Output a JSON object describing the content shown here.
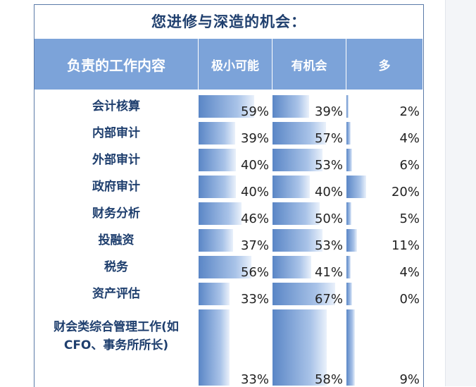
{
  "title": "您进修与深造的机会：",
  "headers": [
    "负责的工作内容",
    "极小可能",
    "有机会",
    "多"
  ],
  "rows": [
    {
      "label": "会计核算",
      "values": [
        "59%",
        "39%",
        "2%"
      ],
      "fractions": [
        0.59,
        0.39,
        0.02
      ]
    },
    {
      "label": "内部审计",
      "values": [
        "39%",
        "57%",
        "4%"
      ],
      "fractions": [
        0.39,
        0.57,
        0.04
      ]
    },
    {
      "label": "外部审计",
      "values": [
        "40%",
        "53%",
        "6%"
      ],
      "fractions": [
        0.4,
        0.53,
        0.06
      ]
    },
    {
      "label": "政府审计",
      "values": [
        "40%",
        "40%",
        "20%"
      ],
      "fractions": [
        0.4,
        0.4,
        0.2
      ]
    },
    {
      "label": "财务分析",
      "values": [
        "46%",
        "50%",
        "5%"
      ],
      "fractions": [
        0.46,
        0.5,
        0.05
      ]
    },
    {
      "label": "投融资",
      "values": [
        "37%",
        "53%",
        "11%"
      ],
      "fractions": [
        0.37,
        0.53,
        0.11
      ]
    },
    {
      "label": "税务",
      "values": [
        "56%",
        "41%",
        "4%"
      ],
      "fractions": [
        0.56,
        0.41,
        0.04
      ]
    },
    {
      "label": "资产评估",
      "values": [
        "33%",
        "67%",
        "0%"
      ],
      "fractions": [
        0.33,
        0.67,
        0.0
      ]
    },
    {
      "label": "财会类综合管理工作(如CFO、事务所所长)",
      "values": [
        "33%",
        "58%",
        "9%"
      ],
      "fractions": [
        0.33,
        0.58,
        0.09
      ]
    }
  ],
  "colors": {
    "header_bg": "#7ca3d9",
    "title_text": "#1f3f6e",
    "bar_dark": "#5a86c6",
    "bar_light": "#eaf1fb"
  }
}
